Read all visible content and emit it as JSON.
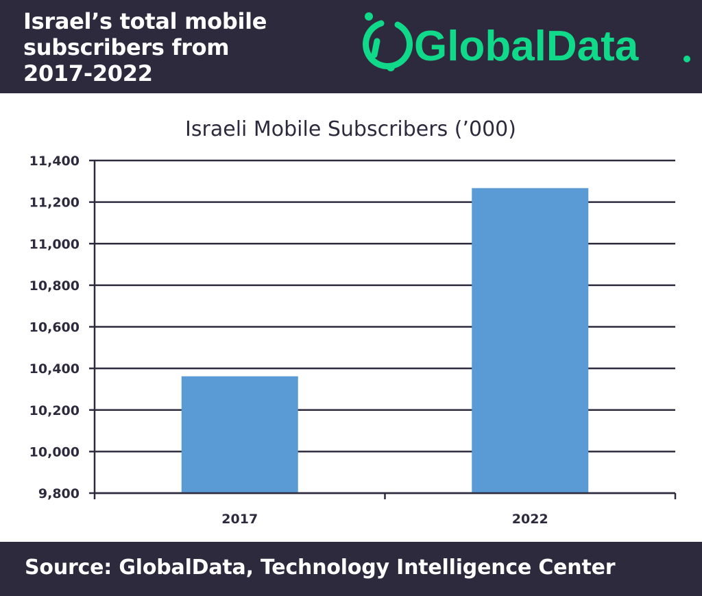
{
  "header": {
    "title_lines": [
      "Israel’s total mobile",
      "subscribers from",
      "2017-2022"
    ]
  },
  "logo": {
    "text": "GlobalData",
    "accent_color": "#10d98a"
  },
  "chart_data": {
    "type": "bar",
    "title": "Israeli Mobile Subscribers (’000)",
    "categories": [
      "2017",
      "2022"
    ],
    "values": [
      10362,
      11267
    ],
    "ylim": [
      9800,
      11400
    ],
    "yticks": [
      9800,
      10000,
      10200,
      10400,
      10600,
      10800,
      11000,
      11200,
      11400
    ],
    "ytick_labels": [
      "9,800",
      "10,000",
      "10,200",
      "10,400",
      "10,600",
      "10,800",
      "11,000",
      "11,200",
      "11,400"
    ],
    "grid": true,
    "bar_color": "#5b9bd5",
    "xlabel": "",
    "ylabel": ""
  },
  "footer": {
    "source": "Source: GlobalData, Technology Intelligence Center"
  },
  "colors": {
    "banner": "#2e2a3d",
    "grid": "#2e2a3d"
  }
}
